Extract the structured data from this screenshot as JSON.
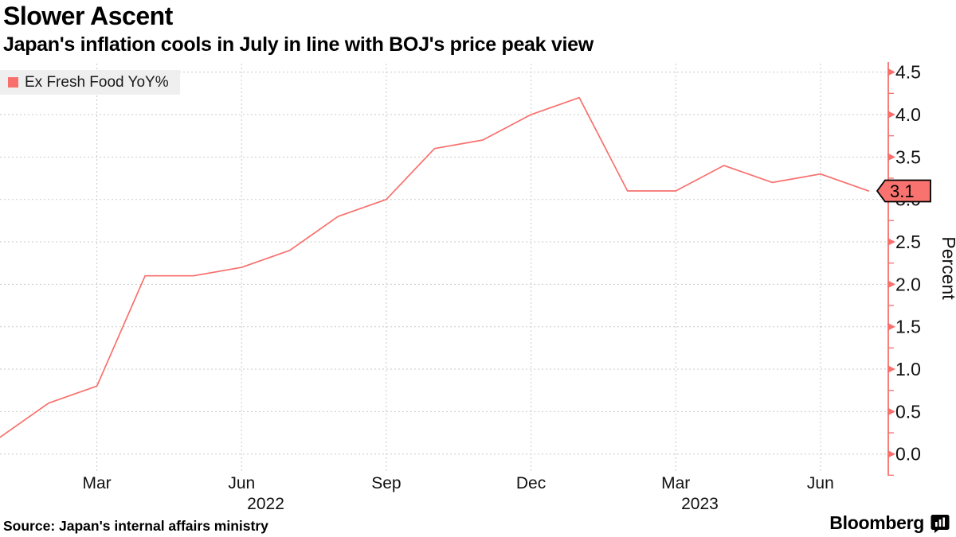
{
  "header": {
    "title": "Slower Ascent",
    "subtitle": "Japan's inflation cools in July in line with BOJ's price peak view"
  },
  "legend": {
    "label": "Ex Fresh Food YoY%"
  },
  "footer": {
    "source": "Source: Japan's internal affairs ministry",
    "brand": "Bloomberg"
  },
  "colors": {
    "accent": "#f8706d",
    "badge_fill": "#f8736f",
    "badge_border": "#000000",
    "grid": "#c9c9c9",
    "tick_text": "#111111",
    "legend_bg": "#efefef"
  },
  "chart_data": {
    "type": "line",
    "title": "Slower Ascent",
    "subtitle": "Japan's inflation cools in July in line with BOJ's price peak view",
    "x": [
      "2022-01",
      "2022-02",
      "2022-03",
      "2022-04",
      "2022-05",
      "2022-06",
      "2022-07",
      "2022-08",
      "2022-09",
      "2022-10",
      "2022-11",
      "2022-12",
      "2023-01",
      "2023-02",
      "2023-03",
      "2023-04",
      "2023-05",
      "2023-06",
      "2023-07"
    ],
    "series": [
      {
        "name": "Ex Fresh Food YoY%",
        "values": [
          0.2,
          0.6,
          0.8,
          2.1,
          2.1,
          2.2,
          2.4,
          2.8,
          3.0,
          3.6,
          3.7,
          4.0,
          4.2,
          3.1,
          3.1,
          3.4,
          3.2,
          3.3,
          3.1
        ]
      }
    ],
    "ylabel": "Percent",
    "xlabel": "",
    "ylim": [
      0.0,
      4.5
    ],
    "ytick_labels": [
      "0.0",
      "0.5",
      "1.0",
      "1.5",
      "2.0",
      "2.5",
      "3.0",
      "3.5",
      "4.0",
      "4.5"
    ],
    "yticks": [
      0.0,
      0.5,
      1.0,
      1.5,
      2.0,
      2.5,
      3.0,
      3.5,
      4.0,
      4.5
    ],
    "minor_yticks": [
      -0.25,
      0.25,
      0.75,
      1.25,
      1.75,
      2.25,
      2.75,
      3.25,
      3.75,
      4.25
    ],
    "x_ticks": [
      {
        "label": "Mar",
        "index": 2
      },
      {
        "label": "Jun",
        "index": 5
      },
      {
        "label": "Sep",
        "index": 8
      },
      {
        "label": "Dec",
        "index": 11
      },
      {
        "label": "Mar",
        "index": 14
      },
      {
        "label": "Jun",
        "index": 17
      }
    ],
    "year_labels": [
      {
        "label": "2022",
        "index": 5.5
      },
      {
        "label": "2023",
        "index": 14.5
      }
    ],
    "last_value_label": "3.1",
    "grid": true,
    "legend_position": "top-left",
    "axis_side": "right"
  }
}
